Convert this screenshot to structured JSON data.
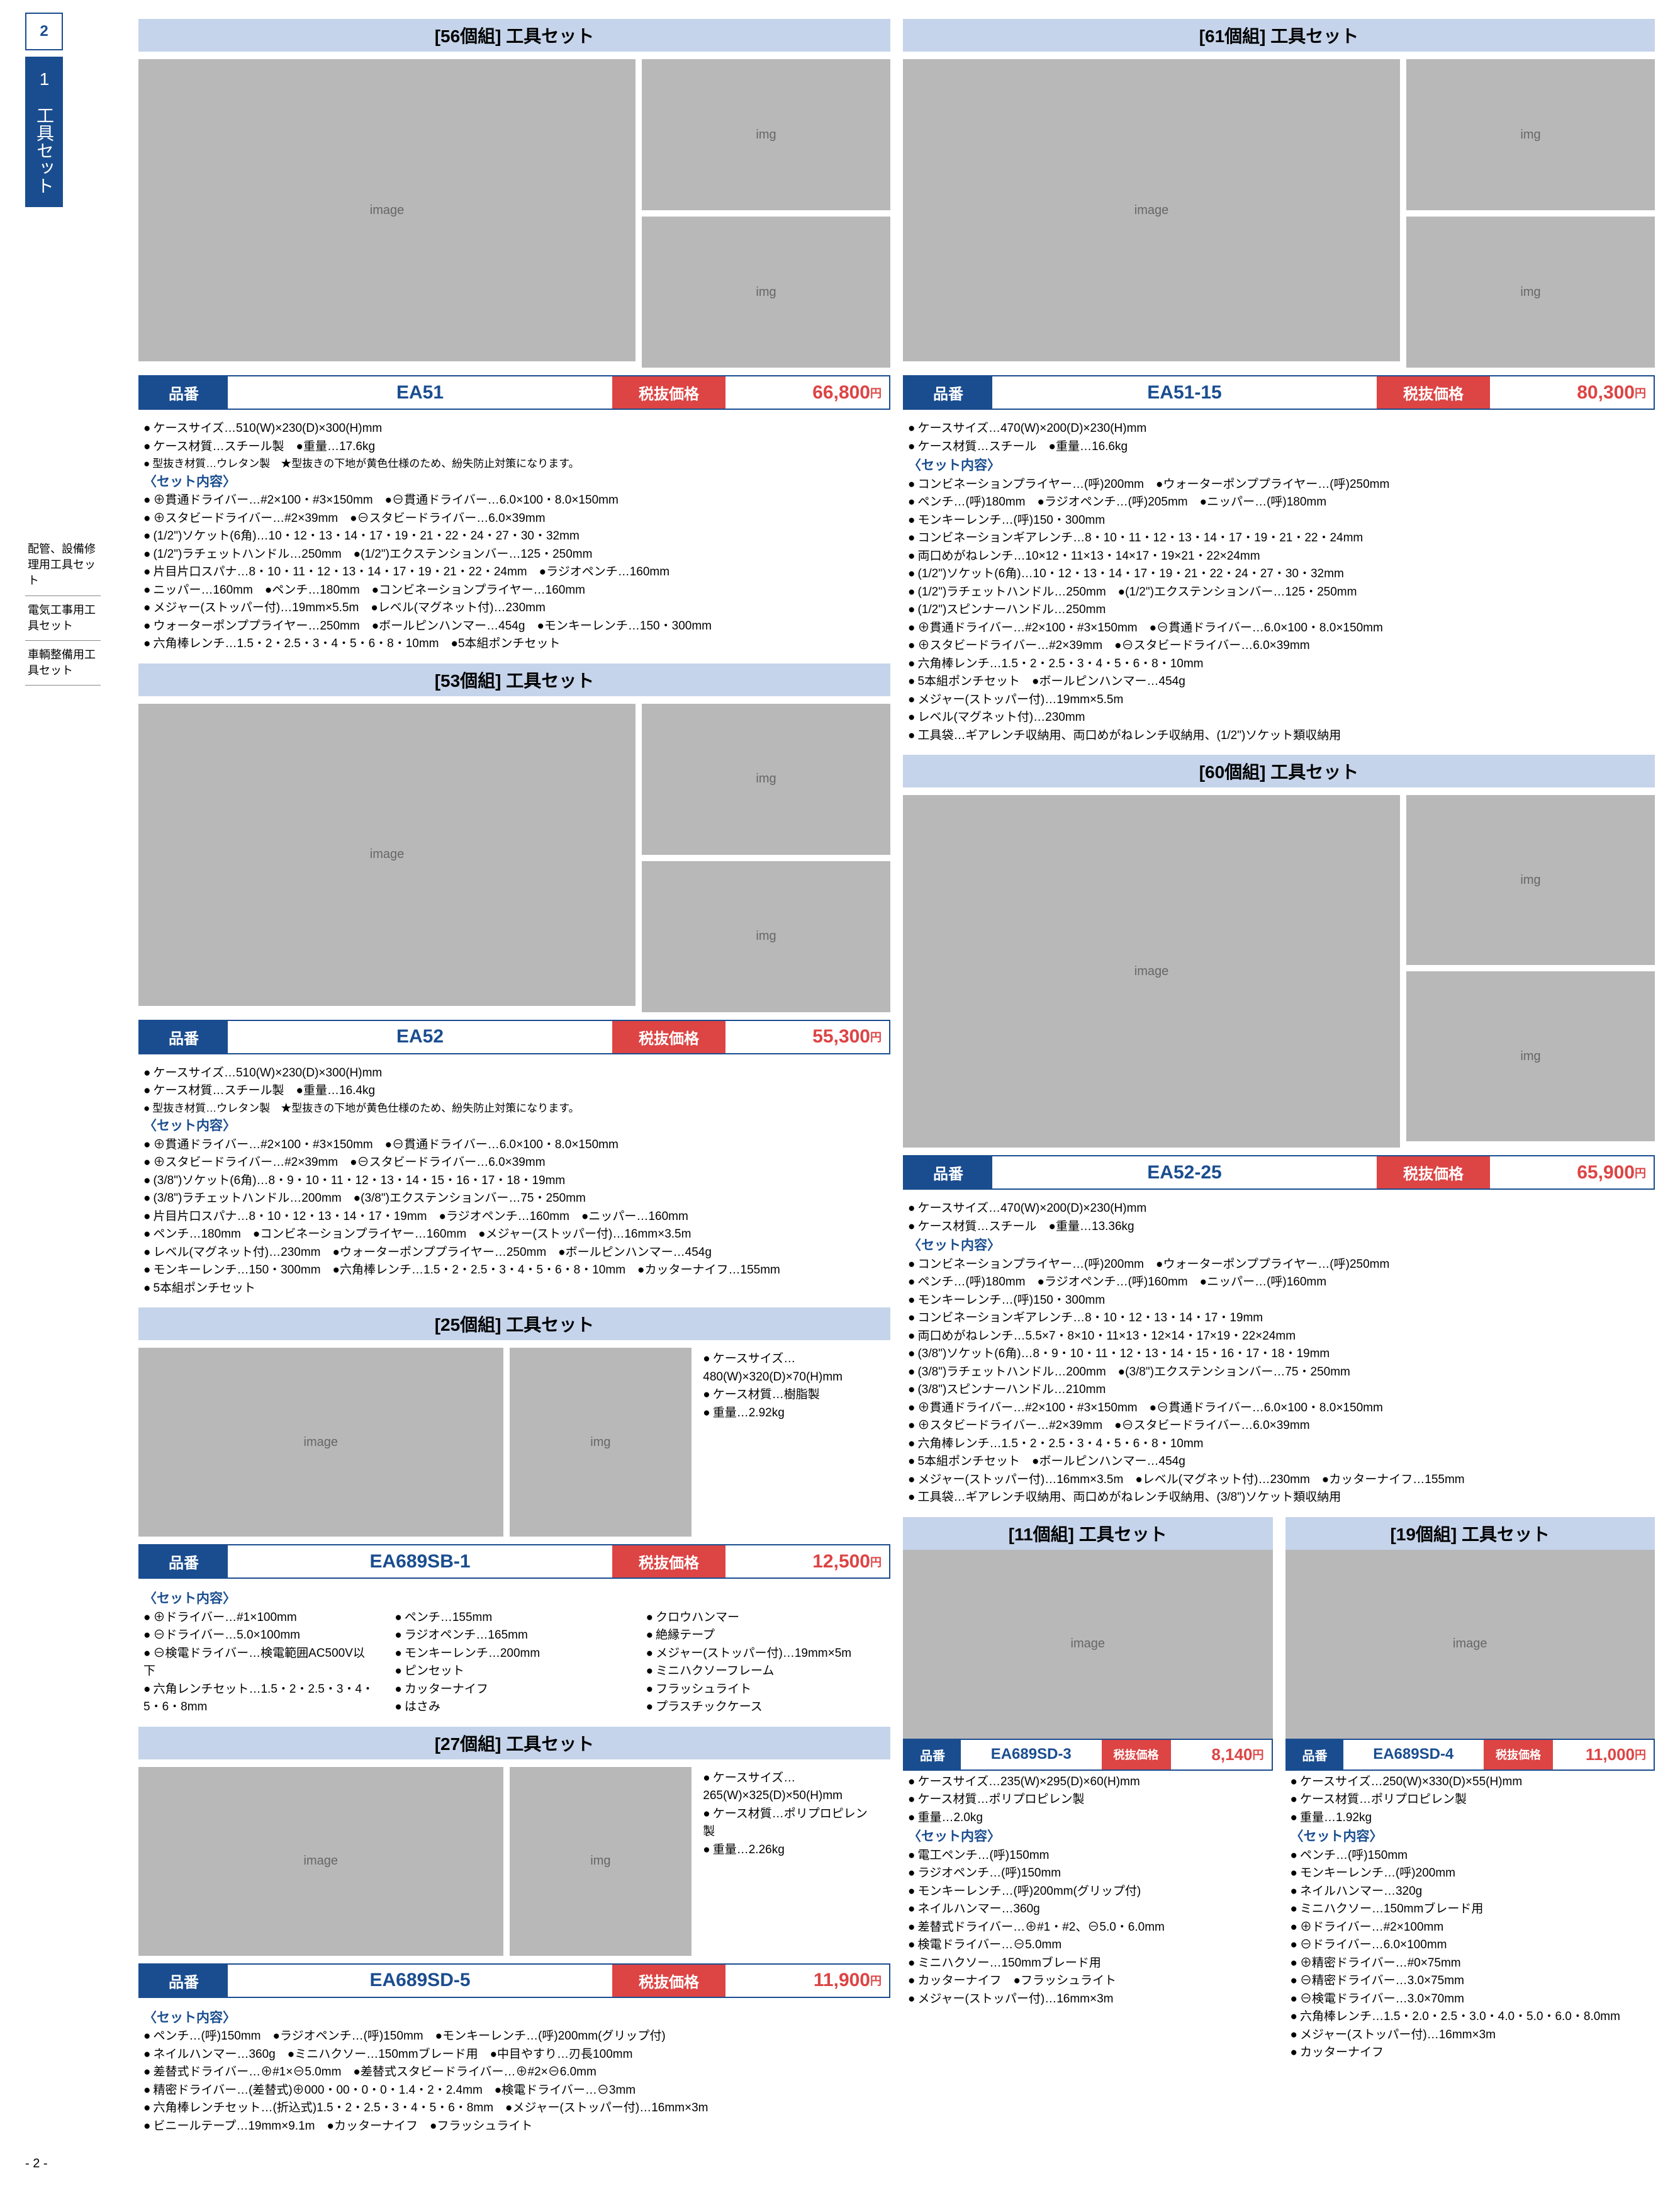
{
  "page": {
    "tab": "2",
    "sideTitle": "1　工具セット",
    "pageNum": "- 2 -"
  },
  "nav": [
    "配管、設備修理用工具セット",
    "電気工事用工具セット",
    "車輌整備用工具セット"
  ],
  "labels": {
    "hinban": "品番",
    "price": "税抜価格",
    "yen": "円",
    "setHead": "〈セット内容〉"
  },
  "products": [
    {
      "id": "ea51",
      "title": "[56個組] 工具セット",
      "code": "EA51",
      "price": "66,800",
      "head": [
        "ケースサイズ…510(W)×230(D)×300(H)mm",
        "ケース材質…スチール製　●重量…17.6kg",
        "型抜き材質…ウレタン製　★型抜きの下地が黄色仕様のため、紛失防止対策になります。"
      ],
      "items": [
        "⊕貫通ドライバー…#2×100・#3×150mm　●⊖貫通ドライバー…6.0×100・8.0×150mm",
        "⊕スタビードライバー…#2×39mm　●⊖スタビードライバー…6.0×39mm",
        "(1/2\")ソケット(6角)…10・12・13・14・17・19・21・22・24・27・30・32mm",
        "(1/2\")ラチェットハンドル…250mm　●(1/2\")エクステンションバー…125・250mm",
        "片目片口スパナ…8・10・11・12・13・14・17・19・21・22・24mm　●ラジオペンチ…160mm",
        "ニッパー…160mm　●ペンチ…180mm　●コンビネーションプライヤー…160mm",
        "メジャー(ストッパー付)…19mm×5.5m　●レベル(マグネット付)…230mm",
        "ウォーターポンププライヤー…250mm　●ボールピンハンマー…454g　●モンキーレンチ…150・300mm",
        "六角棒レンチ…1.5・2・2.5・3・4・5・6・8・10mm　●5本組ポンチセット"
      ]
    },
    {
      "id": "ea51-15",
      "title": "[61個組] 工具セット",
      "code": "EA51-15",
      "price": "80,300",
      "head": [
        "ケースサイズ…470(W)×200(D)×230(H)mm",
        "ケース材質…スチール　●重量…16.6kg"
      ],
      "items": [
        "コンビネーションプライヤー…(呼)200mm　●ウォーターポンププライヤー…(呼)250mm",
        "ペンチ…(呼)180mm　●ラジオペンチ…(呼)205mm　●ニッパー…(呼)180mm",
        "モンキーレンチ…(呼)150・300mm",
        "コンビネーションギアレンチ…8・10・11・12・13・14・17・19・21・22・24mm",
        "両口めがねレンチ…10×12・11×13・14×17・19×21・22×24mm",
        "(1/2\")ソケット(6角)…10・12・13・14・17・19・21・22・24・27・30・32mm",
        "(1/2\")ラチェットハンドル…250mm　●(1/2\")エクステンションバー…125・250mm",
        "(1/2\")スピンナーハンドル…250mm",
        "⊕貫通ドライバー…#2×100・#3×150mm　●⊖貫通ドライバー…6.0×100・8.0×150mm",
        "⊕スタビードライバー…#2×39mm　●⊖スタビードライバー…6.0×39mm",
        "六角棒レンチ…1.5・2・2.5・3・4・5・6・8・10mm",
        "5本組ポンチセット　●ボールピンハンマー…454g",
        "メジャー(ストッパー付)…19mm×5.5m",
        "レベル(マグネット付)…230mm",
        "工具袋…ギアレンチ収納用、両口めがねレンチ収納用、(1/2\")ソケット類収納用"
      ]
    },
    {
      "id": "ea52",
      "title": "[53個組] 工具セット",
      "code": "EA52",
      "price": "55,300",
      "head": [
        "ケースサイズ…510(W)×230(D)×300(H)mm",
        "ケース材質…スチール製　●重量…16.4kg",
        "型抜き材質…ウレタン製　★型抜きの下地が黄色仕様のため、紛失防止対策になります。"
      ],
      "items": [
        "⊕貫通ドライバー…#2×100・#3×150mm　●⊖貫通ドライバー…6.0×100・8.0×150mm",
        "⊕スタビードライバー…#2×39mm　●⊖スタビードライバー…6.0×39mm",
        "(3/8\")ソケット(6角)…8・9・10・11・12・13・14・15・16・17・18・19mm",
        "(3/8\")ラチェットハンドル…200mm　●(3/8\")エクステンションバー…75・250mm",
        "片目片口スパナ…8・10・12・13・14・17・19mm　●ラジオペンチ…160mm　●ニッパー…160mm",
        "ペンチ…180mm　●コンビネーションプライヤー…160mm　●メジャー(ストッパー付)…16mm×3.5m",
        "レベル(マグネット付)…230mm　●ウォーターポンププライヤー…250mm　●ボールピンハンマー…454g",
        "モンキーレンチ…150・300mm　●六角棒レンチ…1.5・2・2.5・3・4・5・6・8・10mm　●カッターナイフ…155mm",
        "5本組ポンチセット"
      ]
    },
    {
      "id": "ea52-25",
      "title": "[60個組] 工具セット",
      "code": "EA52-25",
      "price": "65,900",
      "head": [
        "ケースサイズ…470(W)×200(D)×230(H)mm",
        "ケース材質…スチール　●重量…13.36kg"
      ],
      "items": [
        "コンビネーションプライヤー…(呼)200mm　●ウォーターポンププライヤー…(呼)250mm",
        "ペンチ…(呼)180mm　●ラジオペンチ…(呼)160mm　●ニッパー…(呼)160mm",
        "モンキーレンチ…(呼)150・300mm",
        "コンビネーションギアレンチ…8・10・12・13・14・17・19mm",
        "両口めがねレンチ…5.5×7・8×10・11×13・12×14・17×19・22×24mm",
        "(3/8\")ソケット(6角)…8・9・10・11・12・13・14・15・16・17・18・19mm",
        "(3/8\")ラチェットハンドル…200mm　●(3/8\")エクステンションバー…75・250mm",
        "(3/8\")スピンナーハンドル…210mm",
        "⊕貫通ドライバー…#2×100・#3×150mm　●⊖貫通ドライバー…6.0×100・8.0×150mm",
        "⊕スタビードライバー…#2×39mm　●⊖スタビードライバー…6.0×39mm",
        "六角棒レンチ…1.5・2・2.5・3・4・5・6・8・10mm",
        "5本組ポンチセット　●ボールピンハンマー…454g",
        "メジャー(ストッパー付)…16mm×3.5m　●レベル(マグネット付)…230mm　●カッターナイフ…155mm",
        "工具袋…ギアレンチ収納用、両口めがねレンチ収納用、(3/8\")ソケット類収納用"
      ]
    },
    {
      "id": "ea689sb-1",
      "title": "[25個組] 工具セット",
      "code": "EA689SB-1",
      "price": "12,500",
      "sideSpec": [
        "ケースサイズ…480(W)×320(D)×70(H)mm",
        "ケース材質…樹脂製",
        "重量…2.92kg"
      ],
      "items": [
        "⊕ドライバー…#1×100mm",
        "⊖ドライバー…5.0×100mm",
        "⊖検電ドライバー…検電範囲AC500V以下",
        "六角レンチセット…1.5・2・2.5・3・4・5・6・8mm",
        "ペンチ…155mm",
        "ラジオペンチ…165mm",
        "モンキーレンチ…200mm",
        "ピンセット",
        "カッターナイフ",
        "はさみ",
        "クロウハンマー",
        "絶縁テープ",
        "メジャー(ストッパー付)…19mm×5m",
        "ミニハクソーフレーム",
        "フラッシュライト",
        "プラスチックケース"
      ]
    },
    {
      "id": "ea689sd-5",
      "title": "[27個組] 工具セット",
      "code": "EA689SD-5",
      "price": "11,900",
      "sideSpec": [
        "ケースサイズ…265(W)×325(D)×50(H)mm",
        "ケース材質…ポリプロピレン製",
        "重量…2.26kg"
      ],
      "items": [
        "ペンチ…(呼)150mm　●ラジオペンチ…(呼)150mm　●モンキーレンチ…(呼)200mm(グリップ付)",
        "ネイルハンマー…360g　●ミニハクソー…150mmブレード用　●中目やすり…刃長100mm",
        "差替式ドライバー…⊕#1×⊖5.0mm　●差替式スタビードライバー…⊕#2×⊖6.0mm",
        "精密ドライバー…(差替式)⊕000・00・0・0・1.4・2・2.4mm　●検電ドライバー…⊖3mm",
        "六角棒レンチセット…(折込式)1.5・2・2.5・3・4・5・6・8mm　●メジャー(ストッパー付)…16mm×3m",
        "ビニールテープ…19mm×9.1m　●カッターナイフ　●フラッシュライト"
      ]
    },
    {
      "id": "ea689sd-3",
      "title": "[11個組] 工具セット",
      "code": "EA689SD-3",
      "price": "8,140",
      "head": [
        "ケースサイズ…235(W)×295(D)×60(H)mm",
        "ケース材質…ポリプロピレン製",
        "重量…2.0kg"
      ],
      "items": [
        "電工ペンチ…(呼)150mm",
        "ラジオペンチ…(呼)150mm",
        "モンキーレンチ…(呼)200mm(グリップ付)",
        "ネイルハンマー…360g",
        "差替式ドライバー…⊕#1・#2、⊖5.0・6.0mm",
        "検電ドライバー…⊖5.0mm",
        "ミニハクソー…150mmブレード用",
        "カッターナイフ　●フラッシュライト",
        "メジャー(ストッパー付)…16mm×3m"
      ]
    },
    {
      "id": "ea689sd-4",
      "title": "[19個組] 工具セット",
      "code": "EA689SD-4",
      "price": "11,000",
      "head": [
        "ケースサイズ…250(W)×330(D)×55(H)mm",
        "ケース材質…ポリプロピレン製",
        "重量…1.92kg"
      ],
      "items": [
        "ペンチ…(呼)150mm",
        "モンキーレンチ…(呼)200mm",
        "ネイルハンマー…320g",
        "ミニハクソー…150mmブレード用",
        "⊕ドライバー…#2×100mm",
        "⊖ドライバー…6.0×100mm",
        "⊕精密ドライバー…#0×75mm",
        "⊖精密ドライバー…3.0×75mm",
        "⊖検電ドライバー…3.0×70mm",
        "六角棒レンチ…1.5・2.0・2.5・3.0・4.0・5.0・6.0・8.0mm",
        "メジャー(ストッパー付)…16mm×3m",
        "カッターナイフ"
      ]
    }
  ]
}
